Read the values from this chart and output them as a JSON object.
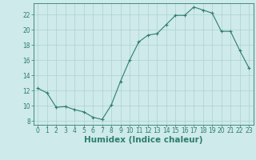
{
  "x": [
    0,
    1,
    2,
    3,
    4,
    5,
    6,
    7,
    8,
    9,
    10,
    11,
    12,
    13,
    14,
    15,
    16,
    17,
    18,
    19,
    20,
    21,
    22,
    23
  ],
  "y": [
    12.3,
    11.7,
    9.8,
    9.9,
    9.5,
    9.2,
    8.5,
    8.2,
    10.1,
    13.2,
    16.0,
    18.4,
    19.3,
    19.5,
    20.7,
    21.9,
    21.9,
    23.0,
    22.6,
    22.2,
    19.8,
    19.8,
    17.3,
    15.0
  ],
  "xlabel": "Humidex (Indice chaleur)",
  "xlim": [
    -0.5,
    23.5
  ],
  "ylim": [
    7.5,
    23.5
  ],
  "yticks": [
    8,
    10,
    12,
    14,
    16,
    18,
    20,
    22
  ],
  "xticks": [
    0,
    1,
    2,
    3,
    4,
    5,
    6,
    7,
    8,
    9,
    10,
    11,
    12,
    13,
    14,
    15,
    16,
    17,
    18,
    19,
    20,
    21,
    22,
    23
  ],
  "line_color": "#2e7d6e",
  "marker": "+",
  "bg_color": "#ceeaea",
  "grid_color": "#aed0d0",
  "axis_color": "#2e7d6e",
  "label_color": "#2e7d6e",
  "tick_label_fontsize": 5.5,
  "xlabel_fontsize": 7.5
}
